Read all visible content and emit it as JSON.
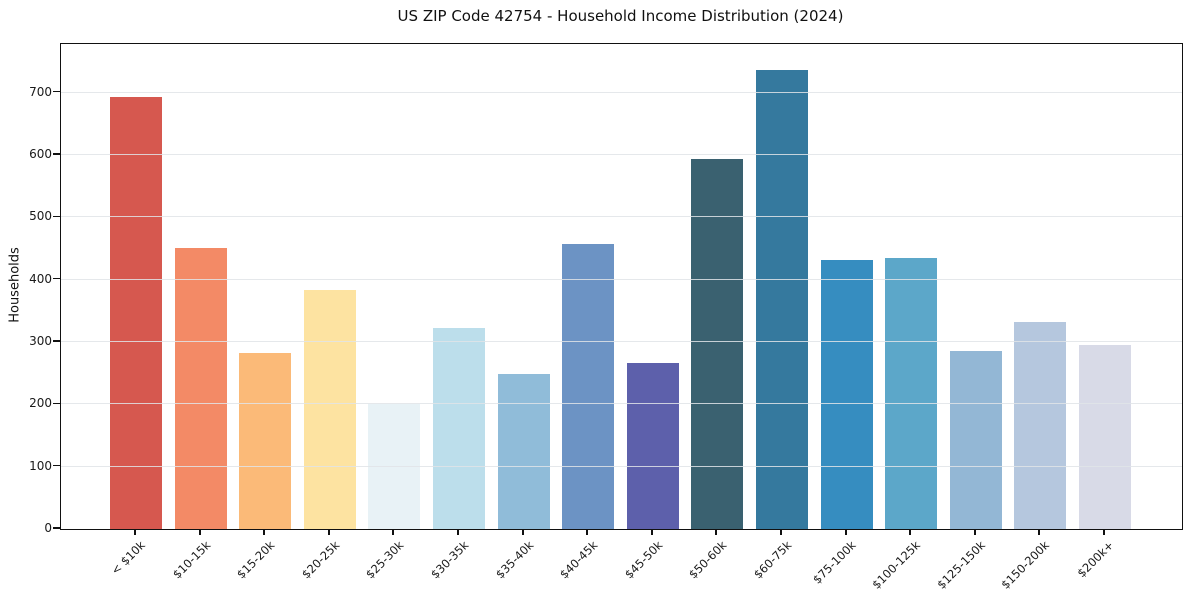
{
  "chart_data": {
    "type": "bar",
    "title": "US ZIP Code 42754 - Household Income Distribution (2024)",
    "xlabel": "",
    "ylabel": "Households",
    "categories": [
      "< $10k",
      "$10-15k",
      "$15-20k",
      "$20-25k",
      "$25-30k",
      "$30-35k",
      "$35-40k",
      "$40-45k",
      "$45-50k",
      "$50-60k",
      "$60-75k",
      "$75-100k",
      "$100-125k",
      "$125-150k",
      "$150-200k",
      "$200k+"
    ],
    "values": [
      693,
      451,
      283,
      384,
      200,
      322,
      248,
      457,
      267,
      593,
      737,
      432,
      435,
      285,
      332,
      295
    ],
    "bar_colors": [
      "#d6584f",
      "#f38a66",
      "#fbba78",
      "#fde3a1",
      "#e8f2f6",
      "#bcdeeb",
      "#90bcd9",
      "#6c93c4",
      "#5d60ab",
      "#3a6170",
      "#35799e",
      "#368dc0",
      "#5ca7c9",
      "#93b7d5",
      "#b5c7de",
      "#d8dae7"
    ],
    "yticks": [
      0,
      100,
      200,
      300,
      400,
      500,
      600,
      700
    ],
    "ylim": [
      0,
      778
    ],
    "grid": "horizontal-major",
    "legend": false,
    "axis_color": "#111111",
    "grid_color": "#e6e6e6"
  }
}
